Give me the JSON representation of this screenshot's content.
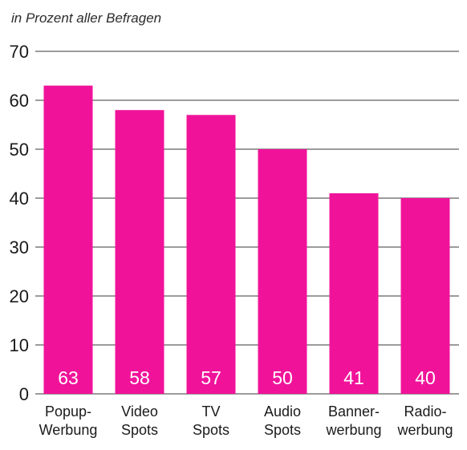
{
  "chart_data": {
    "type": "bar",
    "title": "",
    "subtitle": "in Prozent aller Befragen",
    "xlabel": "",
    "ylabel": "",
    "ylim": [
      0,
      70
    ],
    "yticks": [
      0,
      10,
      20,
      30,
      40,
      50,
      60,
      70
    ],
    "grid": true,
    "categories": [
      [
        "Popup-",
        "Werbung"
      ],
      [
        "Video",
        "Spots"
      ],
      [
        "TV",
        "Spots"
      ],
      [
        "Audio",
        "Spots"
      ],
      [
        "Banner-",
        "werbung"
      ],
      [
        "Radio-",
        "werbung"
      ]
    ],
    "values": [
      63,
      58,
      57,
      50,
      41,
      40
    ],
    "data_labels": [
      "63",
      "58",
      "57",
      "50",
      "41",
      "40"
    ],
    "bar_color": "#f0139a",
    "label_color": "#ffffff"
  }
}
